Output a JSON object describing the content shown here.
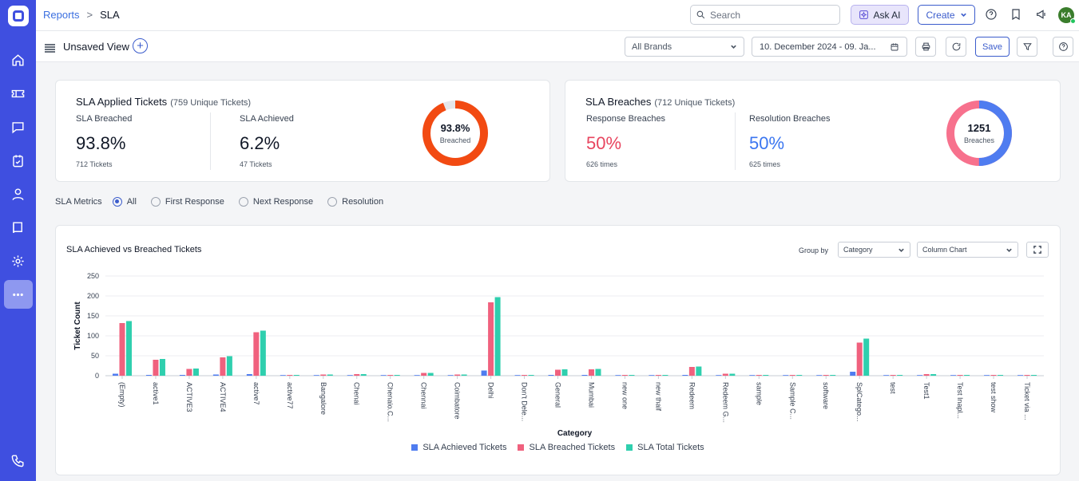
{
  "breadcrumb": {
    "parent": "Reports",
    "sep": ">",
    "current": "SLA"
  },
  "search": {
    "placeholder": "Search"
  },
  "topbar": {
    "ask_ai": "Ask AI",
    "create": "Create",
    "avatar": "KA"
  },
  "viewbar": {
    "title": "Unsaved View",
    "brands": "All Brands",
    "date_range": "10. December 2024 - 09. Ja...",
    "save": "Save"
  },
  "sla_applied": {
    "title": "SLA Applied Tickets",
    "subtitle": "(759 Unique Tickets)",
    "breached_label": "SLA Breached",
    "breached_value": "93.8%",
    "breached_foot": "712 Tickets",
    "achieved_label": "SLA Achieved",
    "achieved_value": "6.2%",
    "achieved_foot": "47 Tickets",
    "donut_value": "93.8%",
    "donut_label": "Breached",
    "donut_fraction": 0.938
  },
  "sla_breaches": {
    "title": "SLA Breaches",
    "subtitle": "(712 Unique Tickets)",
    "response_label": "Response Breaches",
    "response_value": "50%",
    "response_foot": "626 times",
    "resolution_label": "Resolution Breaches",
    "resolution_value": "50%",
    "resolution_foot": "625 times",
    "donut_value": "1251",
    "donut_label": "Breaches",
    "donut_fraction": 0.5
  },
  "metrics": {
    "label": "SLA Metrics",
    "options": [
      "All",
      "First Response",
      "Next Response",
      "Resolution"
    ],
    "selected": "All"
  },
  "chart_panel": {
    "title": "SLA Achieved vs Breached Tickets",
    "group_by_label": "Group by",
    "group_by": "Category",
    "chart_kind": "Column Chart"
  },
  "colors": {
    "achieved": "#4f7cf0",
    "breached": "#f0617e",
    "total": "#2fcfae",
    "accent": "#3b5ccc"
  },
  "chart_data": {
    "type": "bar",
    "xlabel": "Category",
    "ylabel": "Ticket Count",
    "ylim": [
      0,
      250
    ],
    "yticks": [
      0,
      50,
      100,
      150,
      200,
      250
    ],
    "categories": [
      "(Empty)",
      "active1",
      "ACTIVE3",
      "ACTIVE4",
      "active7",
      "active77",
      "Bangalore",
      "Chenai",
      "Chenaio.C...",
      "Chennai",
      "Coimbatore",
      "Delhi",
      "Don't Dele...",
      "General",
      "Mumbai",
      "new one",
      "new thaif",
      "Redeem",
      "Redeem G...",
      "sample",
      "Sample C...",
      "software",
      "SplCatego...",
      "test",
      "Test1",
      "Test Inapl...",
      "test show",
      "Ticket via ..."
    ],
    "series": [
      {
        "name": "SLA Achieved Tickets",
        "values": [
          5,
          2,
          1,
          3,
          4,
          0,
          0,
          0,
          0,
          0,
          0,
          13,
          0,
          1,
          1,
          0,
          0,
          1,
          0,
          0,
          0,
          0,
          10,
          0,
          0,
          0,
          0,
          0
        ]
      },
      {
        "name": "SLA Breached Tickets",
        "values": [
          132,
          40,
          17,
          46,
          109,
          1,
          3,
          4,
          1,
          7,
          3,
          184,
          1,
          15,
          16,
          1,
          2,
          22,
          5,
          1,
          1,
          1,
          83,
          1,
          4,
          1,
          2,
          1
        ]
      },
      {
        "name": "SLA Total Tickets",
        "values": [
          137,
          42,
          18,
          49,
          113,
          1,
          3,
          4,
          1,
          7,
          3,
          197,
          1,
          16,
          17,
          1,
          2,
          23,
          5,
          1,
          1,
          1,
          93,
          1,
          4,
          1,
          2,
          1
        ]
      }
    ],
    "grid": true,
    "legend": "bottom-center"
  }
}
